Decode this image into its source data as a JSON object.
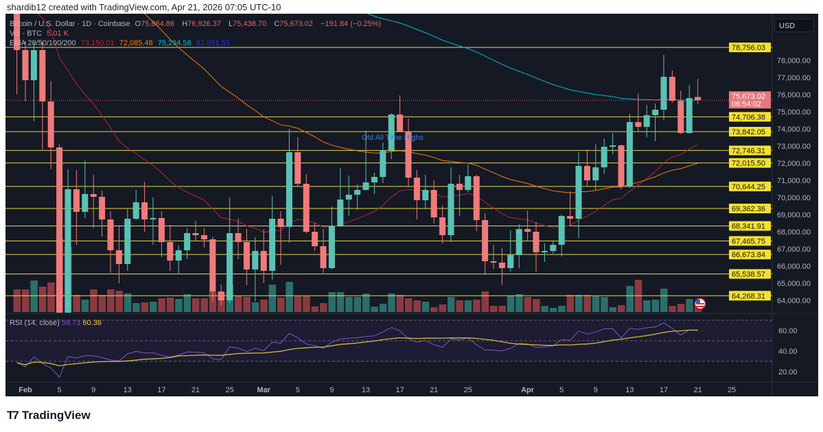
{
  "credit": "shardib12 created with TradingView.com, Apr 21, 2026 07:05 UTC-10",
  "legend": {
    "symbol": "Bitcoin / U.S. Dollar · 1D · Coinbase",
    "o_label": "O",
    "o": "75,864.86",
    "h_label": "H",
    "h": "76,926.37",
    "l_label": "L",
    "l": "75,438.70",
    "c_label": "C",
    "c": "75,673.02",
    "change": "−191.84 (−0.25%)",
    "vol_label": "Vol · BTC",
    "vol": "5.01 K",
    "ema_label": "EMA 20/50/100/200",
    "ema20": "73,150.01",
    "ema50": "72,085.48",
    "ema100": "75,294.58",
    "ema200": "82,891.53"
  },
  "currency_button": "USD",
  "annotation": "Old All Time Highs",
  "last_price": {
    "label": "75,673.02",
    "countdown": "06:54:02",
    "value": 75673.02
  },
  "rsi_legend": {
    "label": "RSI (14, close)",
    "rsi": "59.73",
    "ma": "60.36"
  },
  "brand": "TradingView",
  "colors": {
    "up": "#5ac2b4",
    "down": "#ef7b7b",
    "vol_up": "#2b6e6a",
    "vol_down": "#8c3a42",
    "level": "#e6d84a",
    "ema20": "#b22833",
    "ema50": "#f57c00",
    "ema100": "#00bcd4",
    "rsi": "#7e57c2",
    "rsi_ma": "#d8b83c"
  },
  "chart_data": {
    "type": "candlestick",
    "title": "Bitcoin / U.S. Dollar · 1D · Coinbase",
    "ylabel": "USD",
    "ylim": [
      63400,
      80900
    ],
    "price_ticks": [
      "78,000.00",
      "77,000.00",
      "76,000.00",
      "75,000.00",
      "74,000.00",
      "73,000.00",
      "72,000.00",
      "71,000.00",
      "70,000.00",
      "69,000.00",
      "68,000.00",
      "67,000.00",
      "66,000.00",
      "65,000.00",
      "64,000.00"
    ],
    "price_tick_values": [
      78000,
      77000,
      76000,
      75000,
      74000,
      73000,
      72000,
      71000,
      70000,
      69000,
      68000,
      67000,
      66000,
      65000,
      64000
    ],
    "levels": [
      {
        "label": "78,756.03",
        "value": 78756.03
      },
      {
        "label": "74,706.38",
        "value": 74706.38
      },
      {
        "label": "73,842.05",
        "value": 73842.05
      },
      {
        "label": "72,746.31",
        "value": 72746.31
      },
      {
        "label": "72,015.50",
        "value": 72015.5
      },
      {
        "label": "70,644.25",
        "value": 70644.25
      },
      {
        "label": "69,362.36",
        "value": 69362.36
      },
      {
        "label": "68,341.91",
        "value": 68341.91
      },
      {
        "label": "67,465.75",
        "value": 67465.75
      },
      {
        "label": "66,673.84",
        "value": 66673.84
      },
      {
        "label": "65,538.57",
        "value": 65538.57
      },
      {
        "label": "64,268.31",
        "value": 64268.31
      }
    ],
    "x_ticks": [
      {
        "label": "Feb",
        "day": 0
      },
      {
        "label": "5",
        "day": 4
      },
      {
        "label": "9",
        "day": 8
      },
      {
        "label": "13",
        "day": 12
      },
      {
        "label": "17",
        "day": 16
      },
      {
        "label": "21",
        "day": 20
      },
      {
        "label": "25",
        "day": 24
      },
      {
        "label": "Mar",
        "day": 28
      },
      {
        "label": "5",
        "day": 32
      },
      {
        "label": "9",
        "day": 36
      },
      {
        "label": "13",
        "day": 40
      },
      {
        "label": "17",
        "day": 44
      },
      {
        "label": "21",
        "day": 48
      },
      {
        "label": "25",
        "day": 52
      },
      {
        "label": "Apr",
        "day": 59
      },
      {
        "label": "5",
        "day": 63
      },
      {
        "label": "9",
        "day": 67
      },
      {
        "label": "13",
        "day": 71
      },
      {
        "label": "17",
        "day": 75
      },
      {
        "label": "21",
        "day": 79
      },
      {
        "label": "25",
        "day": 83
      }
    ],
    "candle_fields": [
      "date",
      "open",
      "high",
      "low",
      "close",
      "volume_k_btc"
    ],
    "candles": [
      [
        "Jan 31",
        81000,
        81500,
        76000,
        78600,
        16.5
      ],
      [
        "Feb 1",
        78600,
        79120,
        75600,
        76840,
        16.5
      ],
      [
        "Feb 2",
        76840,
        79100,
        74440,
        78600,
        23
      ],
      [
        "Feb 3",
        78600,
        79100,
        72800,
        75600,
        18.5
      ],
      [
        "Feb 4",
        75600,
        76800,
        71640,
        72920,
        21.5
      ],
      [
        "Feb 5",
        72920,
        73100,
        62000,
        63000,
        54
      ],
      [
        "Feb 6",
        63000,
        71640,
        62500,
        70480,
        47.5
      ],
      [
        "Feb 7",
        70480,
        71600,
        67240,
        69160,
        12.5
      ],
      [
        "Feb 8",
        69160,
        72160,
        68800,
        70200,
        9
      ],
      [
        "Feb 9",
        70200,
        71320,
        68200,
        70040,
        16.5
      ],
      [
        "Feb 10",
        70040,
        70400,
        67720,
        68720,
        12.5
      ],
      [
        "Feb 11",
        68720,
        69200,
        65600,
        66920,
        16.5
      ],
      [
        "Feb 12",
        66920,
        68320,
        65000,
        66120,
        15.5
      ],
      [
        "Feb 13",
        66120,
        69320,
        65720,
        68760,
        13.5
      ],
      [
        "Feb 14",
        68760,
        70440,
        68680,
        69720,
        6.5
      ],
      [
        "Feb 15",
        69720,
        70920,
        68000,
        68720,
        7
      ],
      [
        "Feb 16",
        68720,
        70000,
        67240,
        68800,
        7.5
      ],
      [
        "Feb 17",
        68800,
        69200,
        66520,
        67400,
        10
      ],
      [
        "Feb 18",
        67400,
        68400,
        65720,
        66320,
        10.5
      ],
      [
        "Feb 19",
        66320,
        67200,
        65520,
        66920,
        9.5
      ],
      [
        "Feb 20",
        66920,
        68200,
        66400,
        67920,
        13
      ],
      [
        "Feb 21",
        67920,
        68640,
        67440,
        67800,
        10
      ],
      [
        "Feb 22",
        67800,
        68200,
        67080,
        67560,
        10
      ],
      [
        "Feb 23",
        67560,
        67720,
        63920,
        64520,
        15
      ],
      [
        "Feb 24",
        64520,
        64920,
        63720,
        64000,
        14
      ],
      [
        "Feb 25",
        64000,
        70000,
        63840,
        67920,
        20
      ],
      [
        "Feb 26",
        67920,
        68800,
        66400,
        67400,
        11.5
      ],
      [
        "Feb 27",
        67400,
        68160,
        64880,
        65800,
        11
      ],
      [
        "Feb 28",
        65800,
        67680,
        63920,
        66880,
        7
      ],
      [
        "Mar 1",
        66880,
        68160,
        65000,
        65720,
        9
      ],
      [
        "Mar 2",
        65720,
        70080,
        65200,
        68760,
        20
      ],
      [
        "Mar 3",
        68760,
        69200,
        66080,
        68280,
        10.5
      ],
      [
        "Mar 4",
        68280,
        74000,
        67360,
        72640,
        22
      ],
      [
        "Mar 5",
        72640,
        73520,
        70600,
        70800,
        11.5
      ],
      [
        "Mar 6",
        70800,
        71360,
        67900,
        68000,
        11.5
      ],
      [
        "Mar 7",
        68000,
        68520,
        66880,
        67160,
        4
      ],
      [
        "Mar 8",
        67160,
        68160,
        65600,
        65880,
        6.5
      ],
      [
        "Mar 9",
        65880,
        69480,
        65800,
        68360,
        14.5
      ],
      [
        "Mar 10",
        68360,
        71720,
        68280,
        69880,
        14.5
      ],
      [
        "Mar 11",
        69880,
        71280,
        68920,
        70160,
        11
      ],
      [
        "Mar 12",
        70160,
        70760,
        69280,
        70440,
        11
      ],
      [
        "Mar 13",
        70440,
        73920,
        70400,
        70880,
        13.5
      ],
      [
        "Mar 14",
        70880,
        71440,
        70200,
        71200,
        4
      ],
      [
        "Mar 15",
        71200,
        73200,
        70840,
        72760,
        6
      ],
      [
        "Mar 16",
        72760,
        74920,
        72240,
        74840,
        13.5
      ],
      [
        "Mar 17",
        74840,
        75960,
        73800,
        73840,
        12.5
      ],
      [
        "Mar 18",
        73840,
        74600,
        70600,
        71160,
        10
      ],
      [
        "Mar 19",
        71160,
        71600,
        68720,
        69840,
        8.5
      ],
      [
        "Mar 20",
        69840,
        71320,
        69320,
        70440,
        7.5
      ],
      [
        "Mar 21",
        70440,
        71000,
        68480,
        68840,
        3.5
      ],
      [
        "Mar 22",
        68840,
        69520,
        67320,
        67800,
        5.5
      ],
      [
        "Mar 23",
        67800,
        71760,
        67400,
        70800,
        11
      ],
      [
        "Mar 24",
        70800,
        71320,
        68920,
        70440,
        8.5
      ],
      [
        "Mar 25",
        70440,
        71920,
        70320,
        71240,
        8.5
      ],
      [
        "Mar 26",
        71240,
        71320,
        68040,
        68680,
        9
      ],
      [
        "Mar 27",
        68680,
        69080,
        65480,
        66280,
        15
      ],
      [
        "Mar 28",
        66280,
        67240,
        65840,
        66200,
        4.5
      ],
      [
        "Mar 29",
        66200,
        67040,
        64880,
        65880,
        4.5
      ],
      [
        "Mar 30",
        65880,
        68080,
        65680,
        66640,
        12
      ],
      [
        "Mar 31",
        66640,
        68440,
        65880,
        68160,
        13
      ],
      [
        "Apr 1",
        68160,
        69240,
        67440,
        68000,
        11
      ],
      [
        "Apr 2",
        68000,
        68560,
        65640,
        66800,
        9.5
      ],
      [
        "Apr 3",
        66800,
        67320,
        66240,
        66880,
        4.5
      ],
      [
        "Apr 4",
        66880,
        67440,
        66720,
        67240,
        3
      ],
      [
        "Apr 5",
        67240,
        69000,
        66560,
        68920,
        4.5
      ],
      [
        "Apr 6",
        68920,
        70360,
        68320,
        68760,
        12.5
      ],
      [
        "Apr 7",
        68760,
        72640,
        67640,
        71840,
        12.5
      ],
      [
        "Apr 8",
        71840,
        72800,
        70640,
        71000,
        12.5
      ],
      [
        "Apr 9",
        71000,
        73120,
        70440,
        71760,
        11.5
      ],
      [
        "Apr 10",
        71760,
        73440,
        71360,
        72960,
        11
      ],
      [
        "Apr 11",
        72960,
        73760,
        72520,
        73040,
        3.5
      ],
      [
        "Apr 12",
        73040,
        73100,
        70480,
        70640,
        5
      ],
      [
        "Apr 13",
        70640,
        74880,
        70560,
        74400,
        19
      ],
      [
        "Apr 14",
        74400,
        76080,
        73840,
        74120,
        23.5
      ],
      [
        "Apr 15",
        74120,
        75400,
        73520,
        74800,
        8.5
      ],
      [
        "Apr 16",
        74800,
        75480,
        73280,
        75120,
        9
      ],
      [
        "Apr 17",
        75120,
        78320,
        74520,
        77040,
        17
      ],
      [
        "Apr 18",
        77040,
        77400,
        75520,
        75640,
        4.5
      ],
      [
        "Apr 19",
        75640,
        76240,
        73700,
        73760,
        6
      ],
      [
        "Apr 20",
        73760,
        76560,
        73720,
        75800,
        9.5
      ],
      [
        "Apr 21",
        75864.86,
        76926.37,
        75438.7,
        75673.02,
        5.01
      ]
    ],
    "ema_start_values": {
      "ema20": 82000,
      "ema50": 90000,
      "ema100": 96500
    },
    "rsi": {
      "period": 14,
      "ylim": [
        10,
        76
      ],
      "ticks": [
        "60.00",
        "40.00",
        "20.00"
      ],
      "tick_values": [
        60,
        40,
        20
      ],
      "bands": [
        70,
        50,
        30
      ]
    }
  }
}
